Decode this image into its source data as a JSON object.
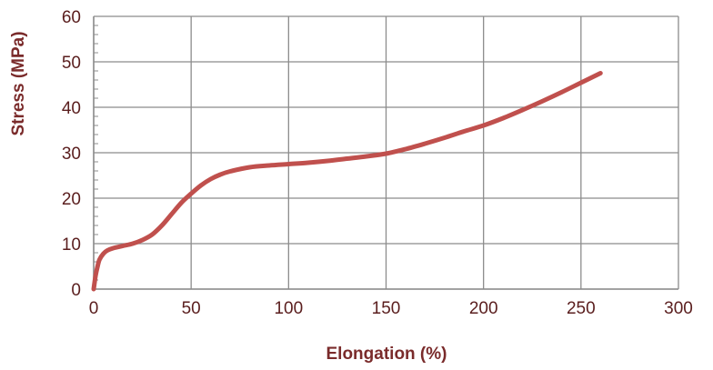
{
  "chart_data": {
    "type": "line",
    "title": "",
    "xlabel": "Elongation (%)",
    "ylabel": "Stress (MPa)",
    "xlim": [
      0,
      300
    ],
    "ylim": [
      0,
      60
    ],
    "x_ticks": [
      0,
      50,
      100,
      150,
      200,
      250,
      300
    ],
    "y_ticks": [
      0,
      10,
      20,
      30,
      40,
      50,
      60
    ],
    "grid": true,
    "colors": {
      "series": "#c0504d",
      "grid": "#8c8c8c",
      "text": "#5a1e1e",
      "axis_title": "#7a2b2b"
    },
    "series": [
      {
        "x": [
          0,
          1,
          2,
          3,
          5,
          7,
          10,
          15,
          20,
          25,
          30,
          35,
          40,
          45,
          50,
          55,
          60,
          65,
          70,
          80,
          90,
          100,
          110,
          120,
          130,
          140,
          150,
          160,
          170,
          180,
          190,
          200,
          210,
          220,
          230,
          240,
          250,
          260
        ],
        "y": [
          0,
          3,
          5,
          6.5,
          7.8,
          8.5,
          9,
          9.5,
          10,
          10.8,
          12,
          14,
          16.5,
          19,
          21,
          22.8,
          24.2,
          25.2,
          25.9,
          26.8,
          27.2,
          27.5,
          27.8,
          28.2,
          28.7,
          29.2,
          29.8,
          30.8,
          32,
          33.3,
          34.7,
          36,
          37.6,
          39.4,
          41.3,
          43.3,
          45.4,
          47.5
        ]
      }
    ]
  }
}
